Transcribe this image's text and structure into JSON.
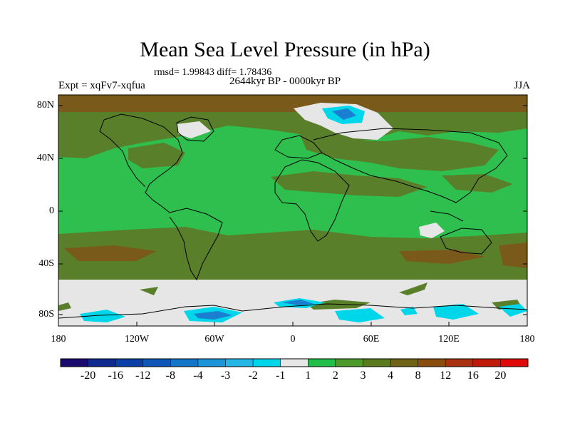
{
  "title": "Mean Sea Level Pressure (in hPa)",
  "stats": "rmsd= 1.99843  diff= 1.78436",
  "period": "2644kyr BP - 0000kyr BP",
  "experiment": "Expt = xqFv7-xqfua",
  "season": "JJA",
  "lat_labels": [
    "80N",
    "40N",
    "0",
    "40S",
    "80S"
  ],
  "lon_labels": [
    "180",
    "120W",
    "60W",
    "0",
    "60E",
    "120E",
    "180"
  ],
  "colorbar": {
    "colors": [
      "#1a0a6e",
      "#0e2a8e",
      "#0a3fa8",
      "#0c57b8",
      "#1276c8",
      "#1b95d8",
      "#26b6e6",
      "#00d6ea",
      "#e6e6e6",
      "#1fbf4a",
      "#4c9a2a",
      "#5a7a1e",
      "#6f6416",
      "#8a4d0e",
      "#a83210",
      "#c01a0a",
      "#e00808"
    ],
    "labels": [
      "-20",
      "-16",
      "-12",
      "-8",
      "-4",
      "-3",
      "-2",
      "-1",
      "1",
      "2",
      "3",
      "4",
      "8",
      "12",
      "16",
      "20"
    ]
  },
  "map_colors": {
    "light_green": "#2fbf4e",
    "olive": "#5a7f2a",
    "brown": "#7a5a1a",
    "near_zero": "#e6e6e6",
    "cyan": "#00d6ea",
    "blue": "#1a7fd0",
    "dark_blue": "#0c4fb0",
    "coast": "#000000"
  }
}
